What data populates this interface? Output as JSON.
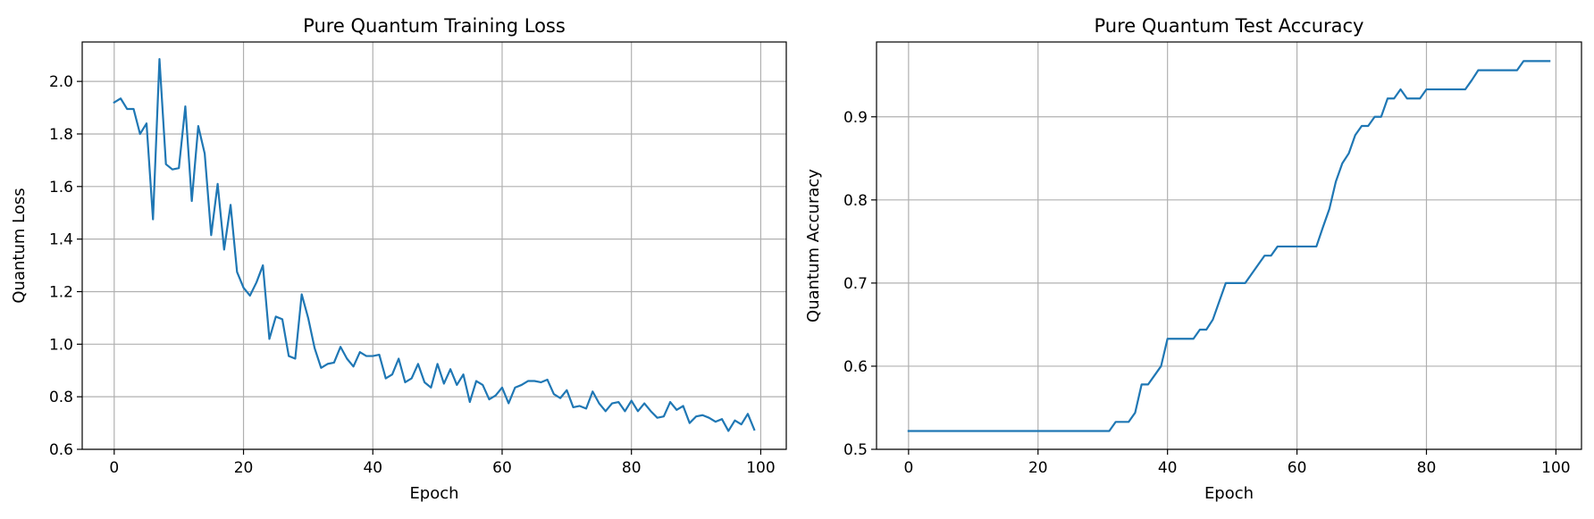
{
  "chart_data": [
    {
      "type": "line",
      "title": "Pure Quantum Training Loss",
      "xlabel": "Epoch",
      "ylabel": "Quantum Loss",
      "xlim": [
        -4.95,
        103.95
      ],
      "ylim": [
        0.6,
        2.15
      ],
      "xticks": [
        0,
        20,
        40,
        60,
        80,
        100
      ],
      "yticks": [
        0.6,
        0.8,
        1.0,
        1.2,
        1.4,
        1.6,
        1.8,
        2.0
      ],
      "xtick_labels": [
        "0",
        "20",
        "40",
        "60",
        "80",
        "100"
      ],
      "ytick_labels": [
        "0.6",
        "0.8",
        "1.0",
        "1.2",
        "1.4",
        "1.6",
        "1.8",
        "2.0"
      ],
      "grid": true,
      "series_color": "#1f77b4",
      "series": [
        {
          "x": [
            0,
            1,
            2,
            3,
            4,
            5,
            6,
            7,
            8,
            9,
            10,
            11,
            12,
            13,
            14,
            15,
            16,
            17,
            18,
            19,
            20,
            21,
            22,
            23,
            24,
            25,
            26,
            27,
            28,
            29,
            30,
            31,
            32,
            33,
            34,
            35,
            36,
            37,
            38,
            39,
            40,
            41,
            42,
            43,
            44,
            45,
            46,
            47,
            48,
            49,
            50,
            51,
            52,
            53,
            54,
            55,
            56,
            57,
            58,
            59,
            60,
            61,
            62,
            63,
            64,
            65,
            66,
            67,
            68,
            69,
            70,
            71,
            72,
            73,
            74,
            75,
            76,
            77,
            78,
            79,
            80,
            81,
            82,
            83,
            84,
            85,
            86,
            87,
            88,
            89,
            90,
            91,
            92,
            93,
            94,
            95,
            96,
            97,
            98,
            99
          ],
          "values": [
            1.92,
            1.935,
            1.895,
            1.895,
            1.8,
            1.84,
            1.475,
            2.085,
            1.685,
            1.665,
            1.67,
            1.905,
            1.545,
            1.83,
            1.725,
            1.415,
            1.61,
            1.36,
            1.53,
            1.275,
            1.215,
            1.185,
            1.235,
            1.3,
            1.02,
            1.105,
            1.095,
            0.955,
            0.945,
            1.19,
            1.1,
            0.985,
            0.91,
            0.925,
            0.93,
            0.99,
            0.945,
            0.915,
            0.97,
            0.955,
            0.955,
            0.96,
            0.87,
            0.885,
            0.945,
            0.855,
            0.87,
            0.925,
            0.855,
            0.835,
            0.925,
            0.85,
            0.905,
            0.845,
            0.885,
            0.78,
            0.86,
            0.845,
            0.79,
            0.805,
            0.835,
            0.775,
            0.835,
            0.845,
            0.86,
            0.86,
            0.855,
            0.865,
            0.81,
            0.795,
            0.825,
            0.76,
            0.765,
            0.755,
            0.82,
            0.775,
            0.745,
            0.775,
            0.78,
            0.745,
            0.785,
            0.745,
            0.775,
            0.745,
            0.72,
            0.725,
            0.78,
            0.75,
            0.765,
            0.7,
            0.725,
            0.73,
            0.72,
            0.705,
            0.715,
            0.67,
            0.71,
            0.695,
            0.735,
            0.675
          ]
        }
      ]
    },
    {
      "type": "line",
      "title": "Pure Quantum Test Accuracy",
      "xlabel": "Epoch",
      "ylabel": "Quantum Accuracy",
      "xlim": [
        -4.95,
        103.95
      ],
      "ylim": [
        0.5,
        0.99
      ],
      "xticks": [
        0,
        20,
        40,
        60,
        80,
        100
      ],
      "yticks": [
        0.5,
        0.6,
        0.7,
        0.8,
        0.9
      ],
      "xtick_labels": [
        "0",
        "20",
        "40",
        "60",
        "80",
        "100"
      ],
      "ytick_labels": [
        "0.5",
        "0.6",
        "0.7",
        "0.8",
        "0.9"
      ],
      "grid": true,
      "series_color": "#1f77b4",
      "series": [
        {
          "x": [
            0,
            1,
            2,
            3,
            4,
            5,
            6,
            7,
            8,
            9,
            10,
            11,
            12,
            13,
            14,
            15,
            16,
            17,
            18,
            19,
            20,
            21,
            22,
            23,
            24,
            25,
            26,
            27,
            28,
            29,
            30,
            31,
            32,
            33,
            34,
            35,
            36,
            37,
            38,
            39,
            40,
            41,
            42,
            43,
            44,
            45,
            46,
            47,
            48,
            49,
            50,
            51,
            52,
            53,
            54,
            55,
            56,
            57,
            58,
            59,
            60,
            61,
            62,
            63,
            64,
            65,
            66,
            67,
            68,
            69,
            70,
            71,
            72,
            73,
            74,
            75,
            76,
            77,
            78,
            79,
            80,
            81,
            82,
            83,
            84,
            85,
            86,
            87,
            88,
            89,
            90,
            91,
            92,
            93,
            94,
            95,
            96,
            97,
            98,
            99
          ],
          "values": [
            0.522,
            0.522,
            0.522,
            0.522,
            0.522,
            0.522,
            0.522,
            0.522,
            0.522,
            0.522,
            0.522,
            0.522,
            0.522,
            0.522,
            0.522,
            0.522,
            0.522,
            0.522,
            0.522,
            0.522,
            0.522,
            0.522,
            0.522,
            0.522,
            0.522,
            0.522,
            0.522,
            0.522,
            0.522,
            0.522,
            0.522,
            0.522,
            0.533,
            0.533,
            0.533,
            0.544,
            0.578,
            0.578,
            0.589,
            0.6,
            0.633,
            0.633,
            0.633,
            0.633,
            0.633,
            0.644,
            0.644,
            0.656,
            0.678,
            0.7,
            0.7,
            0.7,
            0.7,
            0.711,
            0.722,
            0.733,
            0.733,
            0.744,
            0.744,
            0.744,
            0.744,
            0.744,
            0.744,
            0.744,
            0.767,
            0.789,
            0.822,
            0.844,
            0.856,
            0.878,
            0.889,
            0.889,
            0.9,
            0.9,
            0.922,
            0.922,
            0.933,
            0.922,
            0.922,
            0.922,
            0.933,
            0.933,
            0.933,
            0.933,
            0.933,
            0.933,
            0.933,
            0.944,
            0.956,
            0.956,
            0.956,
            0.956,
            0.956,
            0.956,
            0.956,
            0.967,
            0.967,
            0.967,
            0.967,
            0.967
          ]
        }
      ]
    }
  ]
}
